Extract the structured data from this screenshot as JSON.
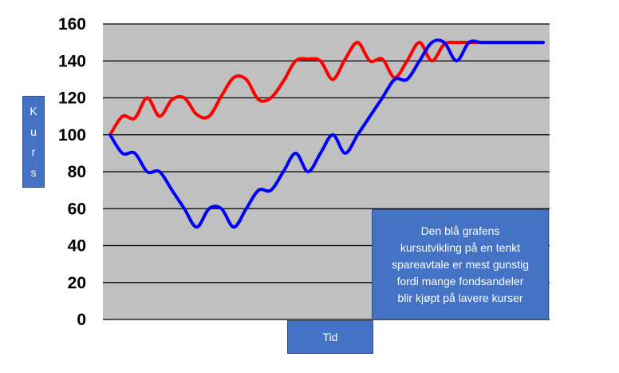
{
  "chart_data": {
    "type": "line",
    "ylabel": "Kurs",
    "xlabel": "Tid",
    "ylim": [
      0,
      160
    ],
    "yticks": [
      "0",
      "20",
      "40",
      "60",
      "80",
      "100",
      "120",
      "140",
      "160"
    ],
    "grid": true,
    "background": "#c0c0c0",
    "series": [
      {
        "color": "#ff0000",
        "x": [
          0,
          1,
          2,
          3,
          4,
          5,
          6,
          7,
          8,
          9,
          10,
          11,
          12,
          13,
          14,
          15,
          16,
          17,
          18,
          19,
          20,
          21,
          22,
          23,
          24,
          25,
          26,
          27,
          28,
          29,
          30,
          31,
          32,
          33,
          34,
          35
        ],
        "values": [
          100,
          110,
          109,
          120,
          110,
          119,
          120,
          111,
          110,
          121,
          131,
          130,
          119,
          120,
          129,
          140,
          141,
          140,
          130,
          141,
          150,
          140,
          141,
          131,
          140,
          150,
          140,
          149,
          150,
          150,
          150,
          150,
          150,
          150,
          150,
          150
        ]
      },
      {
        "color": "#0000ff",
        "x": [
          0,
          1,
          2,
          3,
          4,
          5,
          6,
          7,
          8,
          9,
          10,
          11,
          12,
          13,
          14,
          15,
          16,
          17,
          18,
          19,
          20,
          21,
          22,
          23,
          24,
          25,
          26,
          27,
          28,
          29,
          30,
          31,
          32,
          33,
          34,
          35
        ],
        "values": [
          100,
          90,
          90,
          80,
          80,
          70,
          60,
          50,
          60,
          60,
          50,
          60,
          70,
          70,
          80,
          90,
          80,
          90,
          100,
          90,
          100,
          110,
          120,
          130,
          130,
          140,
          150,
          150,
          140,
          150,
          150,
          150,
          150,
          150,
          150,
          150
        ]
      }
    ]
  },
  "ylabel_letters": [
    "K",
    "u",
    "r",
    "s"
  ],
  "note": {
    "line1": "Den blå grafens",
    "line2": "kursutvikling på en tenkt",
    "line3": "spareavtale er mest gunstig",
    "line4": "fordi mange fondsandeler",
    "line5": "blir kjøpt på lavere kurser"
  }
}
